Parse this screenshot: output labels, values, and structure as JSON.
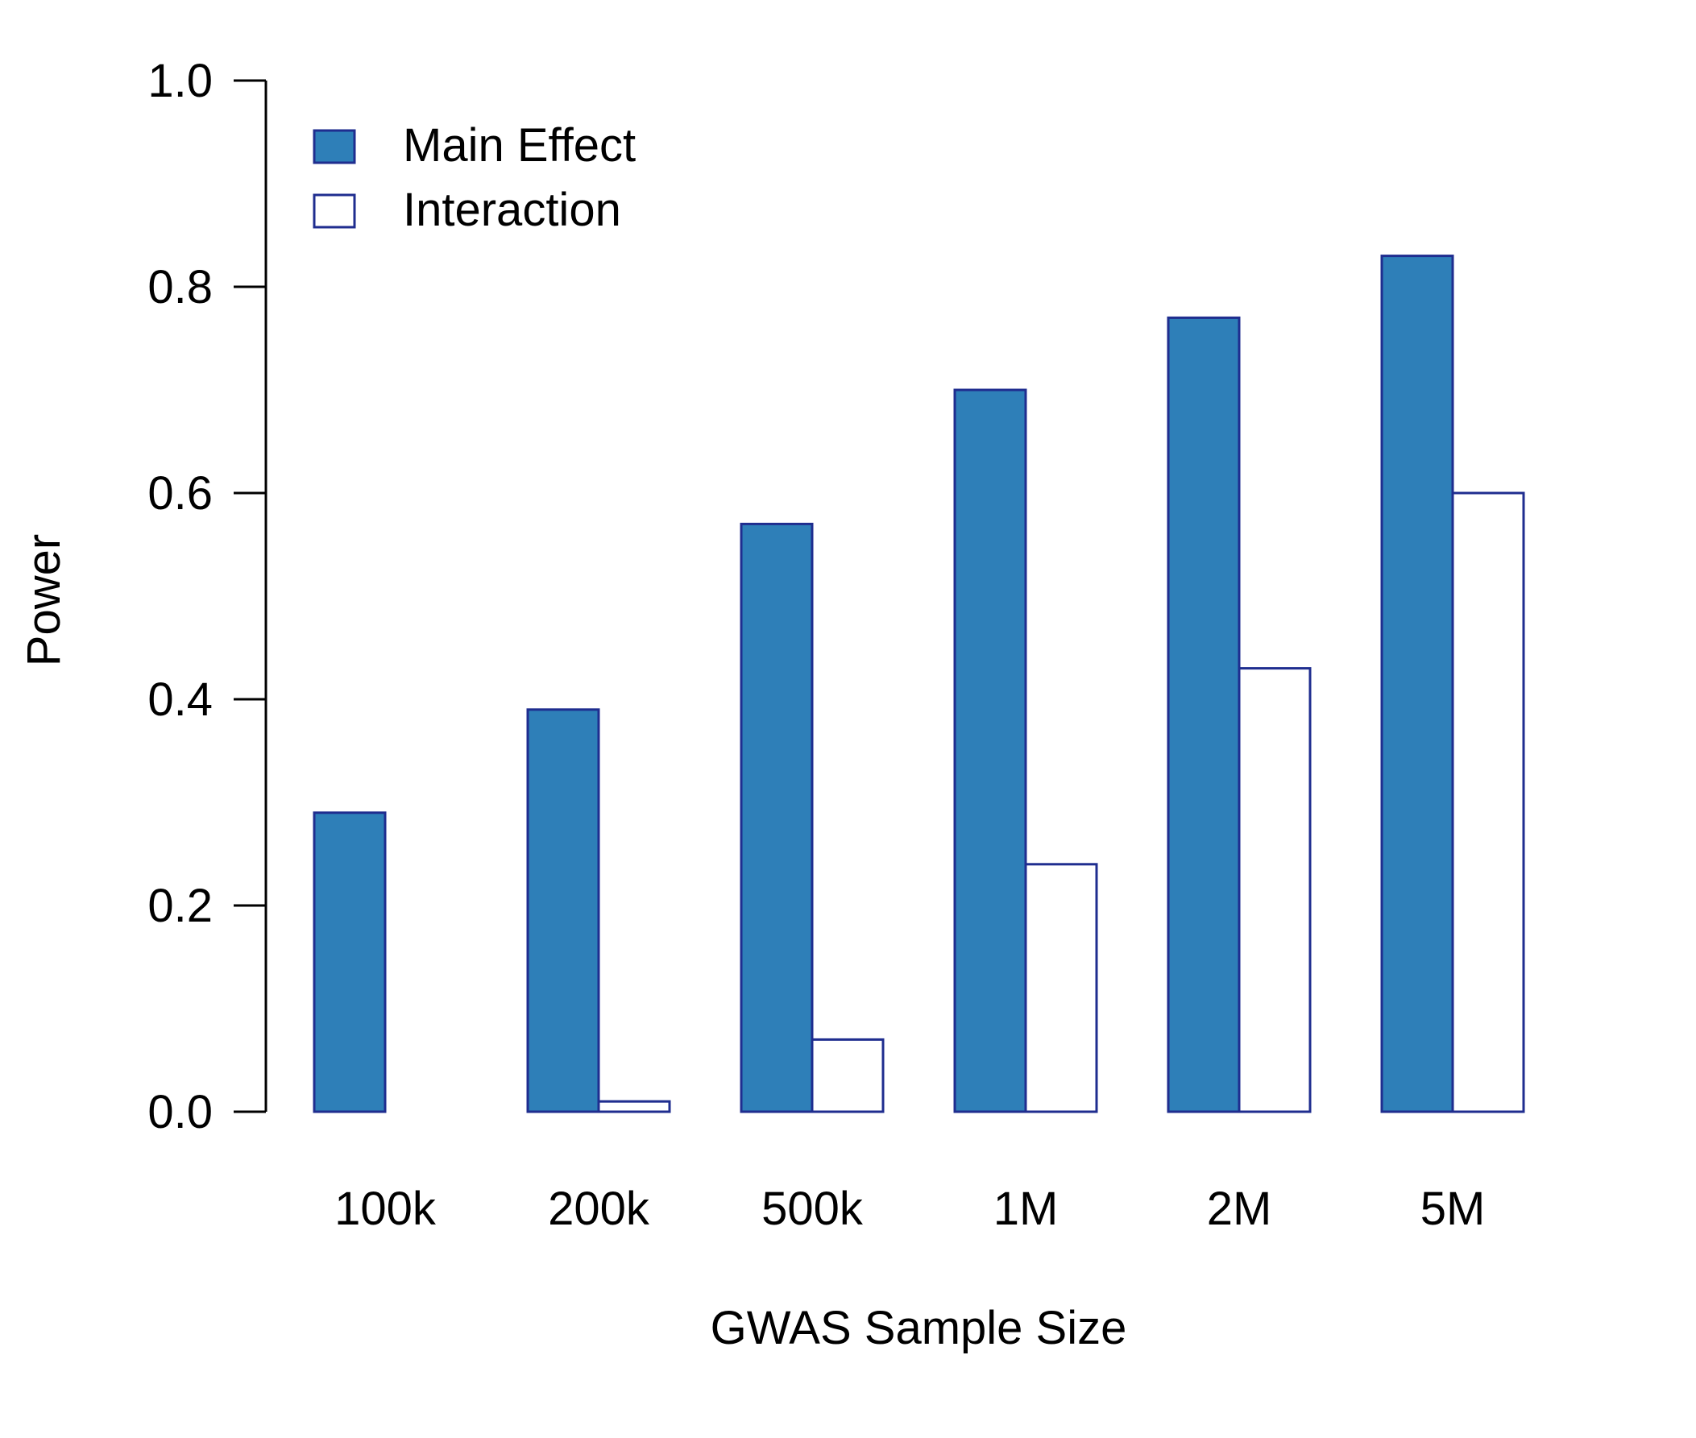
{
  "chart_data": {
    "type": "bar",
    "title": "",
    "xlabel": "GWAS Sample Size",
    "ylabel": "Power",
    "ylim": [
      0,
      1
    ],
    "yticks": [
      0.0,
      0.2,
      0.4,
      0.6,
      0.8,
      1.0
    ],
    "ytick_labels": [
      "0.0",
      "0.2",
      "0.4",
      "0.6",
      "0.8",
      "1.0"
    ],
    "categories": [
      "100k",
      "200k",
      "500k",
      "1M",
      "2M",
      "5M"
    ],
    "series": [
      {
        "name": "Main Effect",
        "fill": "#2e7fb8",
        "stroke": "#1f2d8f",
        "values": [
          0.29,
          0.39,
          0.57,
          0.7,
          0.77,
          0.83
        ]
      },
      {
        "name": "Interaction",
        "fill": "#ffffff",
        "stroke": "#1f2d8f",
        "values": [
          0.0,
          0.01,
          0.07,
          0.24,
          0.43,
          0.6
        ]
      }
    ],
    "legend": {
      "position": "top-left",
      "entries": [
        "Main Effect",
        "Interaction"
      ]
    },
    "grid": false
  },
  "colors": {
    "axis": "#000000",
    "bar_stroke": "#1f2d8f",
    "main_fill": "#2e7fb8",
    "interaction_fill": "#ffffff"
  }
}
